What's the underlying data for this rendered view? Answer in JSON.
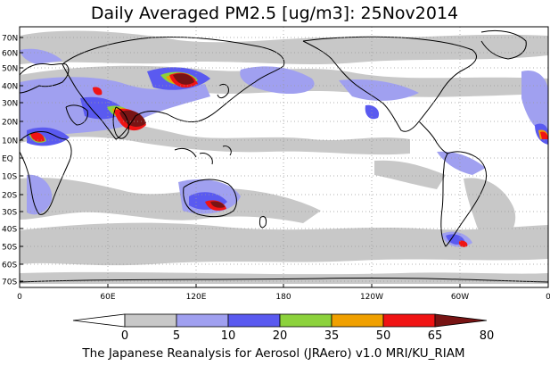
{
  "title": "Daily Averaged PM2.5 [ug/m3]: 25Nov2014",
  "footer": "The Japanese Reanalysis for Aerosol (JRAero) v1.0 MRI/KU_RIAM",
  "lat_labels": [
    "70N",
    "60N",
    "50N",
    "40N",
    "30N",
    "20N",
    "10N",
    "EQ",
    "10S",
    "20S",
    "30S",
    "40S",
    "50S",
    "60S",
    "70S"
  ],
  "lon_labels": [
    "0",
    "60E",
    "120E",
    "180",
    "120W",
    "60W",
    "0"
  ],
  "colorbar": {
    "bins": [
      {
        "color": "#ffffff"
      },
      {
        "color": "#c8c8c8"
      },
      {
        "color": "#a0a0f0"
      },
      {
        "color": "#5a5af0"
      },
      {
        "color": "#8cd23c"
      },
      {
        "color": "#f0a000"
      },
      {
        "color": "#f01414"
      },
      {
        "color": "#781414"
      }
    ],
    "tick_labels": [
      "0",
      "5",
      "10",
      "20",
      "35",
      "50",
      "65",
      "80"
    ]
  }
}
